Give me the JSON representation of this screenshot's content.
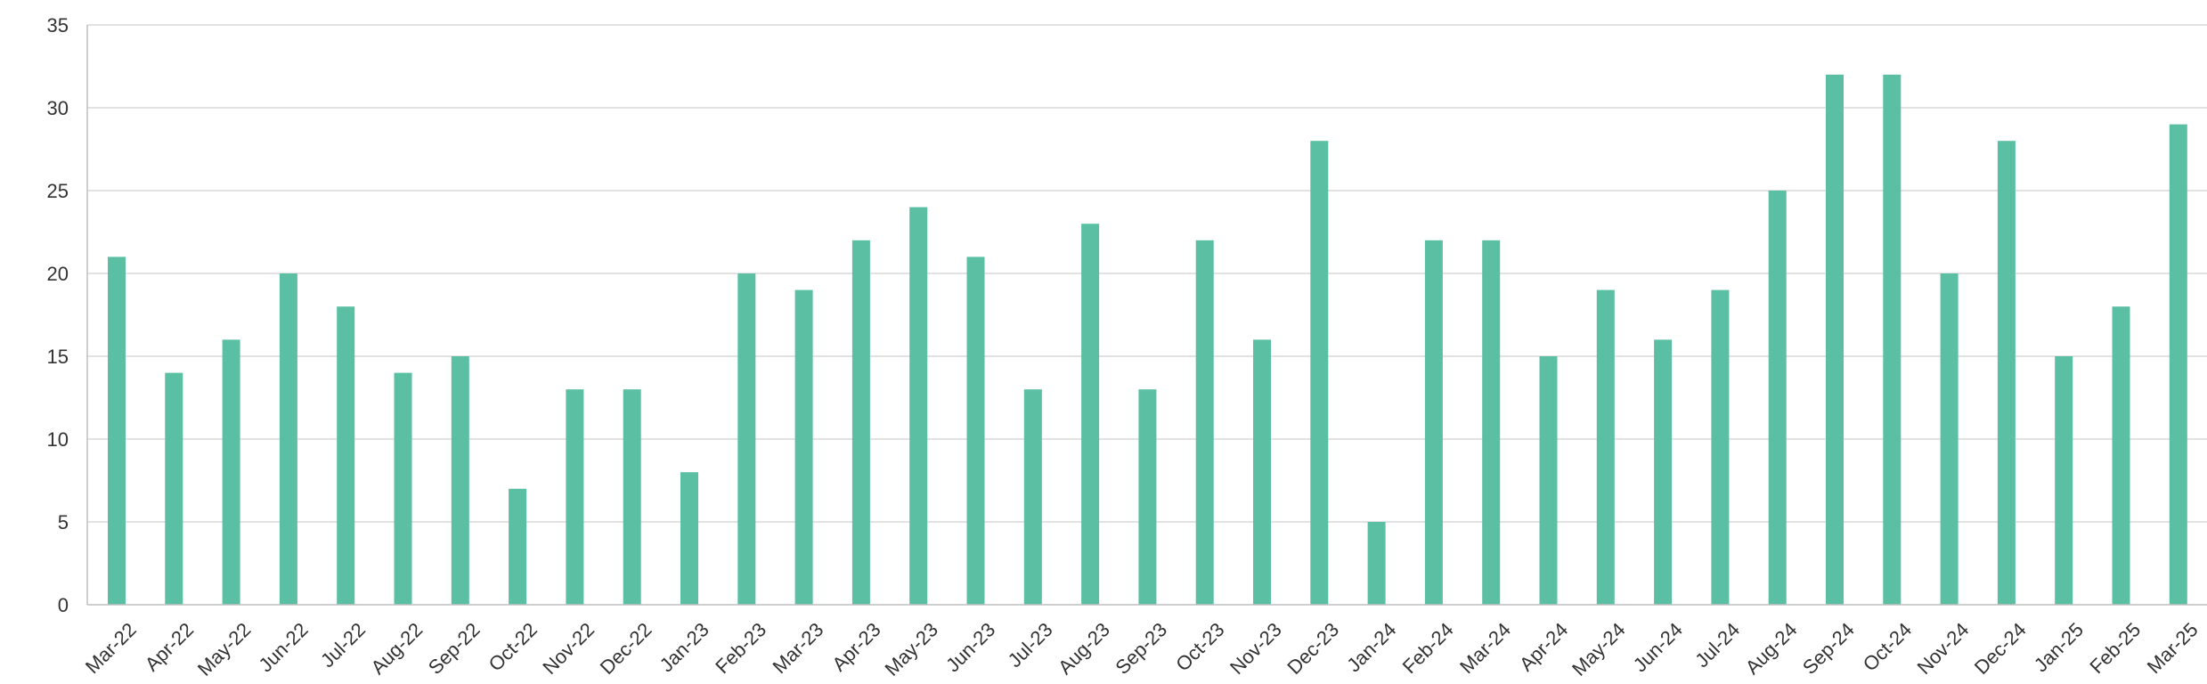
{
  "chart_data": {
    "type": "bar",
    "categories": [
      "Mar-22",
      "Apr-22",
      "May-22",
      "Jun-22",
      "Jul-22",
      "Aug-22",
      "Sep-22",
      "Oct-22",
      "Nov-22",
      "Dec-22",
      "Jan-23",
      "Feb-23",
      "Mar-23",
      "Apr-23",
      "May-23",
      "Jun-23",
      "Jul-23",
      "Aug-23",
      "Sep-23",
      "Oct-23",
      "Nov-23",
      "Dec-23",
      "Jan-24",
      "Feb-24",
      "Mar-24",
      "Apr-24",
      "May-24",
      "Jun-24",
      "Jul-24",
      "Aug-24",
      "Sep-24",
      "Oct-24",
      "Nov-24",
      "Dec-24",
      "Jan-25",
      "Feb-25",
      "Mar-25"
    ],
    "values": [
      21,
      14,
      16,
      20,
      18,
      14,
      15,
      7,
      13,
      13,
      8,
      20,
      19,
      22,
      24,
      21,
      13,
      23,
      13,
      22,
      16,
      28,
      5,
      22,
      22,
      15,
      19,
      16,
      19,
      25,
      32,
      32,
      20,
      28,
      15,
      18,
      29
    ],
    "title": "",
    "xlabel": "",
    "ylabel": "",
    "ylim": [
      0,
      35
    ],
    "yticks": [
      "0",
      "5",
      "10",
      "15",
      "20",
      "25",
      "30",
      "35"
    ],
    "grid": true,
    "legend": "none",
    "bar_color": "#5bc0a3"
  }
}
